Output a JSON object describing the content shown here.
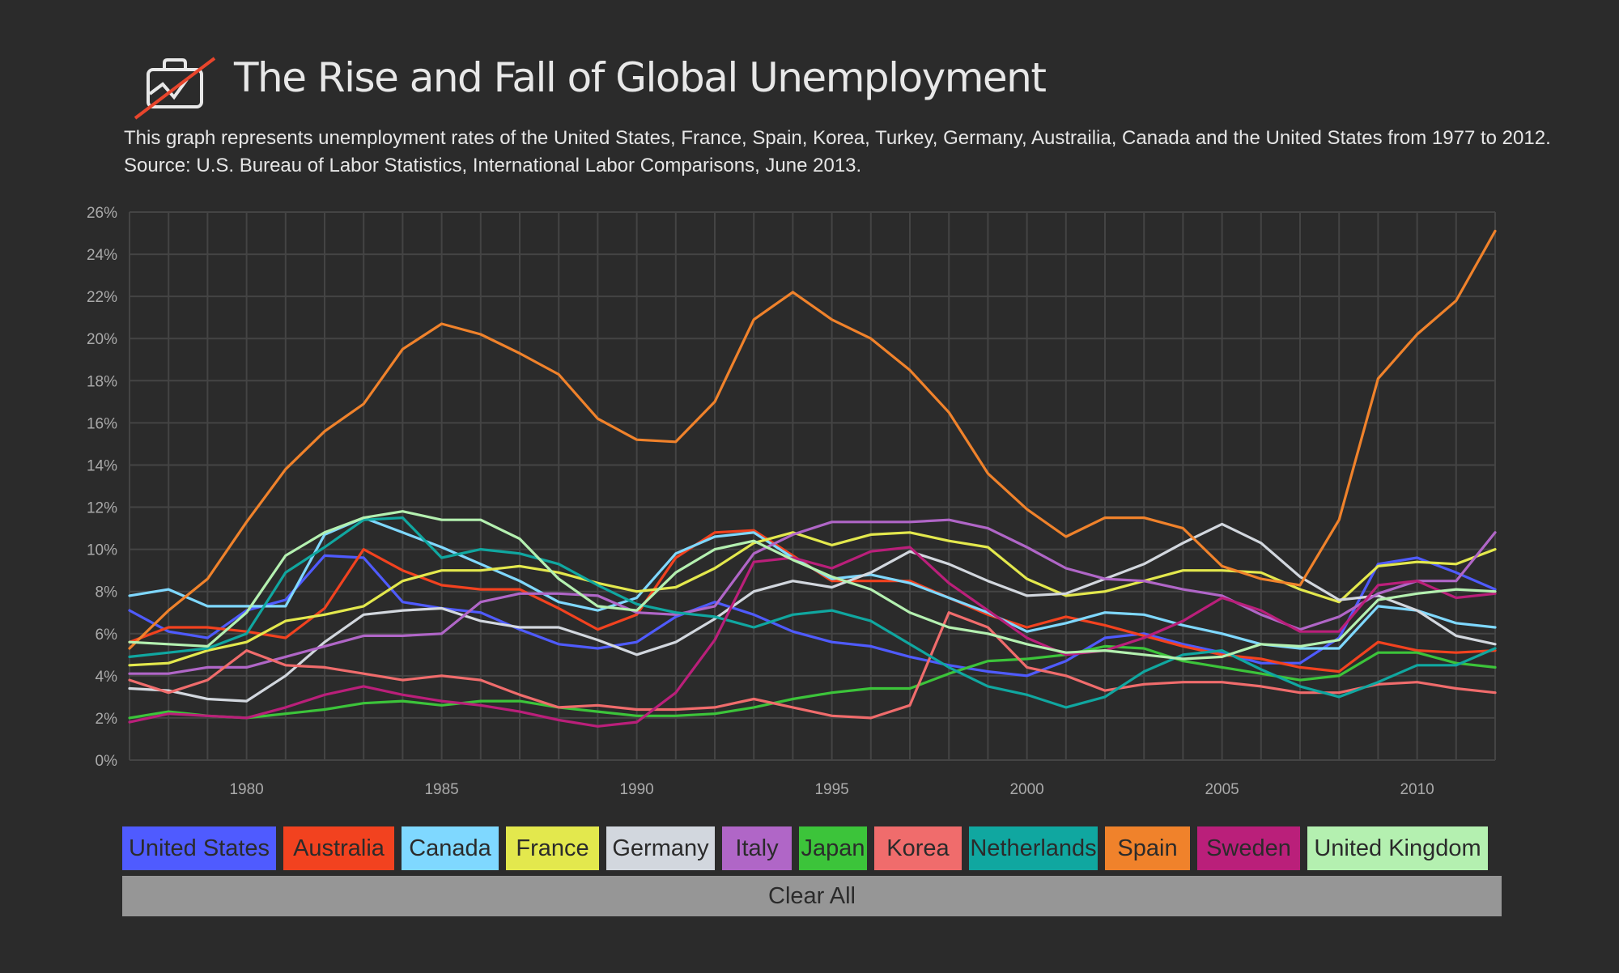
{
  "header": {
    "title": "The Rise and Fall of Global Unemployment",
    "subtitle_line1": "This graph represents unemployment rates of the United States, France, Spain, Korea, Turkey, Germany, Austrailia, Canada and the United States from 1977 to 2012.",
    "subtitle_line2": "Source: U.S. Bureau of Labor Statistics, International Labor Comparisons, June 2013.",
    "logo_icon": "briefcase-chart-icon"
  },
  "colors": {
    "background": "#2b2b2b",
    "grid": "#444444",
    "logo_accent": "#e8452c"
  },
  "chart_data": {
    "type": "line",
    "title": "The Rise and Fall of Global Unemployment",
    "xlabel": "",
    "ylabel": "",
    "x": [
      1977,
      1978,
      1979,
      1980,
      1981,
      1982,
      1983,
      1984,
      1985,
      1986,
      1987,
      1988,
      1989,
      1990,
      1991,
      1992,
      1993,
      1994,
      1995,
      1996,
      1997,
      1998,
      1999,
      2000,
      2001,
      2002,
      2003,
      2004,
      2005,
      2006,
      2007,
      2008,
      2009,
      2010,
      2011,
      2012
    ],
    "xticks": [
      1980,
      1985,
      1990,
      1995,
      2000,
      2005,
      2010
    ],
    "xlim": [
      1977,
      2012
    ],
    "ylim": [
      0,
      26
    ],
    "yticks": [
      0,
      2,
      4,
      6,
      8,
      10,
      12,
      14,
      16,
      18,
      20,
      22,
      24,
      26
    ],
    "ytick_suffix": "%",
    "grid": true,
    "legend_position": "bottom",
    "series": [
      {
        "name": "United States",
        "color": "#4f5bff",
        "values": [
          7.1,
          6.1,
          5.8,
          7.1,
          7.6,
          9.7,
          9.6,
          7.5,
          7.2,
          7.0,
          6.2,
          5.5,
          5.3,
          5.6,
          6.8,
          7.5,
          6.9,
          6.1,
          5.6,
          5.4,
          4.9,
          4.5,
          4.2,
          4.0,
          4.7,
          5.8,
          6.0,
          5.5,
          5.1,
          4.6,
          4.6,
          5.8,
          9.3,
          9.6,
          8.9,
          8.1
        ]
      },
      {
        "name": "Australia",
        "color": "#f2421f",
        "values": [
          5.6,
          6.3,
          6.3,
          6.1,
          5.8,
          7.2,
          10.0,
          9.0,
          8.3,
          8.1,
          8.1,
          7.2,
          6.2,
          6.9,
          9.6,
          10.8,
          10.9,
          9.7,
          8.5,
          8.5,
          8.5,
          7.7,
          6.9,
          6.3,
          6.8,
          6.4,
          5.9,
          5.4,
          5.0,
          4.8,
          4.4,
          4.2,
          5.6,
          5.2,
          5.1,
          5.2
        ]
      },
      {
        "name": "Canada",
        "color": "#7fd8ff",
        "values": [
          7.8,
          8.1,
          7.3,
          7.3,
          7.3,
          10.7,
          11.5,
          10.8,
          10.1,
          9.3,
          8.5,
          7.5,
          7.1,
          7.7,
          9.8,
          10.6,
          10.8,
          9.6,
          8.6,
          8.8,
          8.4,
          7.7,
          7.0,
          6.1,
          6.5,
          7.0,
          6.9,
          6.4,
          6.0,
          5.5,
          5.3,
          5.3,
          7.3,
          7.1,
          6.5,
          6.3
        ]
      },
      {
        "name": "France",
        "color": "#e3e84d",
        "values": [
          4.5,
          4.6,
          5.2,
          5.6,
          6.6,
          6.9,
          7.3,
          8.5,
          9.0,
          9.0,
          9.2,
          8.9,
          8.4,
          8.0,
          8.2,
          9.1,
          10.3,
          10.8,
          10.2,
          10.7,
          10.8,
          10.4,
          10.1,
          8.6,
          7.8,
          8.0,
          8.5,
          9.0,
          9.0,
          8.9,
          8.1,
          7.5,
          9.2,
          9.4,
          9.3,
          10.0
        ]
      },
      {
        "name": "Germany",
        "color": "#d2d7de",
        "values": [
          3.4,
          3.3,
          2.9,
          2.8,
          4.0,
          5.6,
          6.9,
          7.1,
          7.2,
          6.6,
          6.3,
          6.3,
          5.7,
          5.0,
          5.6,
          6.7,
          8.0,
          8.5,
          8.2,
          8.9,
          9.9,
          9.3,
          8.5,
          7.8,
          7.9,
          8.6,
          9.3,
          10.3,
          11.2,
          10.3,
          8.7,
          7.6,
          7.8,
          7.1,
          5.9,
          5.5
        ]
      },
      {
        "name": "Italy",
        "color": "#b066c7",
        "values": [
          4.1,
          4.1,
          4.4,
          4.4,
          4.9,
          5.4,
          5.9,
          5.9,
          6.0,
          7.5,
          7.9,
          7.9,
          7.8,
          7.0,
          6.9,
          7.3,
          9.8,
          10.7,
          11.3,
          11.3,
          11.3,
          11.4,
          11.0,
          10.1,
          9.1,
          8.6,
          8.5,
          8.1,
          7.8,
          6.9,
          6.2,
          6.8,
          7.9,
          8.5,
          8.5,
          10.8
        ]
      },
      {
        "name": "Japan",
        "color": "#3cc43a",
        "values": [
          2.0,
          2.3,
          2.1,
          2.0,
          2.2,
          2.4,
          2.7,
          2.8,
          2.6,
          2.8,
          2.8,
          2.5,
          2.3,
          2.1,
          2.1,
          2.2,
          2.5,
          2.9,
          3.2,
          3.4,
          3.4,
          4.1,
          4.7,
          4.8,
          5.0,
          5.4,
          5.3,
          4.7,
          4.4,
          4.1,
          3.8,
          4.0,
          5.1,
          5.1,
          4.6,
          4.4
        ]
      },
      {
        "name": "Korea",
        "color": "#f06c6c",
        "values": [
          3.8,
          3.2,
          3.8,
          5.2,
          4.5,
          4.4,
          4.1,
          3.8,
          4.0,
          3.8,
          3.1,
          2.5,
          2.6,
          2.4,
          2.4,
          2.5,
          2.9,
          2.5,
          2.1,
          2.0,
          2.6,
          7.0,
          6.3,
          4.4,
          4.0,
          3.3,
          3.6,
          3.7,
          3.7,
          3.5,
          3.2,
          3.2,
          3.6,
          3.7,
          3.4,
          3.2
        ]
      },
      {
        "name": "Netherlands",
        "color": "#10a7a0",
        "values": [
          4.9,
          5.1,
          5.3,
          6.0,
          8.9,
          10.1,
          11.4,
          11.5,
          9.6,
          10.0,
          9.8,
          9.3,
          8.3,
          7.4,
          7.0,
          6.8,
          6.3,
          6.9,
          7.1,
          6.6,
          5.5,
          4.4,
          3.5,
          3.1,
          2.5,
          3.0,
          4.2,
          5.0,
          5.2,
          4.3,
          3.5,
          3.0,
          3.7,
          4.5,
          4.5,
          5.3
        ]
      },
      {
        "name": "Spain",
        "color": "#f0822b",
        "values": [
          5.3,
          7.1,
          8.6,
          11.3,
          13.8,
          15.6,
          16.9,
          19.5,
          20.7,
          20.2,
          19.3,
          18.3,
          16.2,
          15.2,
          15.1,
          17.0,
          20.9,
          22.2,
          20.9,
          20.0,
          18.5,
          16.5,
          13.6,
          11.9,
          10.6,
          11.5,
          11.5,
          11.0,
          9.2,
          8.6,
          8.3,
          11.4,
          18.1,
          20.2,
          21.8,
          25.1
        ]
      },
      {
        "name": "Sweden",
        "color": "#ba1f7a",
        "values": [
          1.8,
          2.2,
          2.1,
          2.0,
          2.5,
          3.1,
          3.5,
          3.1,
          2.8,
          2.6,
          2.3,
          1.9,
          1.6,
          1.8,
          3.2,
          5.7,
          9.4,
          9.6,
          9.1,
          9.9,
          10.1,
          8.4,
          7.1,
          5.8,
          5.0,
          5.2,
          5.8,
          6.6,
          7.7,
          7.1,
          6.1,
          6.1,
          8.3,
          8.5,
          7.7,
          7.9
        ]
      },
      {
        "name": "United Kingdom",
        "color": "#b4f0b0",
        "values": [
          5.6,
          5.5,
          5.4,
          7.0,
          9.7,
          10.8,
          11.5,
          11.8,
          11.4,
          11.4,
          10.5,
          8.6,
          7.3,
          7.1,
          8.9,
          10.0,
          10.4,
          9.5,
          8.7,
          8.1,
          7.0,
          6.3,
          6.0,
          5.5,
          5.1,
          5.2,
          5.0,
          4.8,
          4.9,
          5.5,
          5.4,
          5.7,
          7.6,
          7.9,
          8.1,
          8.0
        ]
      }
    ]
  },
  "legend": {
    "items": [
      "United States",
      "Australia",
      "Canada",
      "France",
      "Germany",
      "Italy",
      "Japan",
      "Korea",
      "Netherlands",
      "Spain",
      "Sweden",
      "United Kingdom"
    ],
    "clear_label": "Clear All"
  }
}
